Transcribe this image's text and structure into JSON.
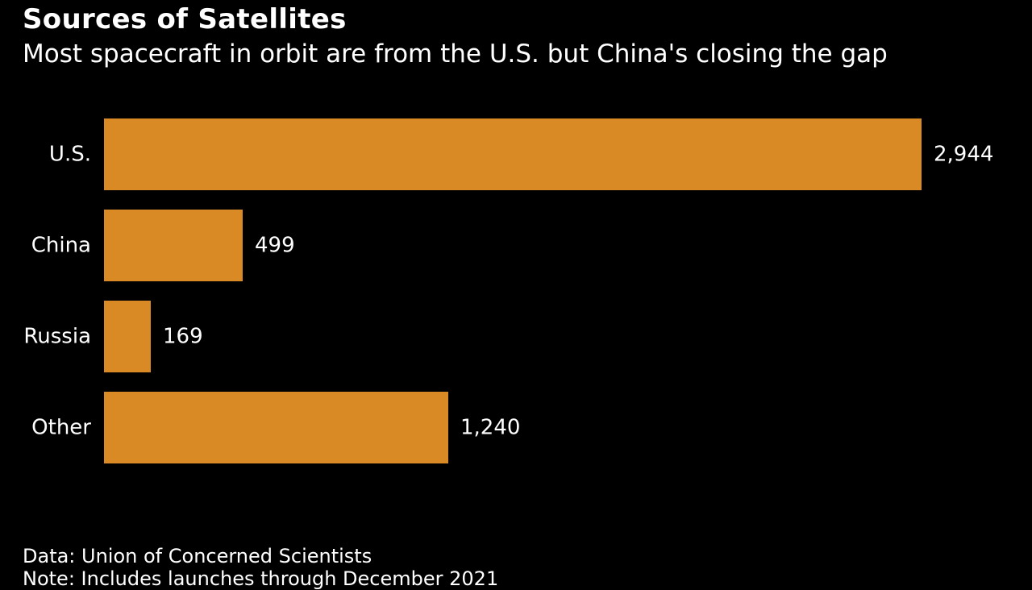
{
  "chart_data": {
    "type": "bar",
    "orientation": "horizontal",
    "title": "Sources of Satellites",
    "subtitle": "Most spacecraft in orbit are from the U.S. but China's closing the gap",
    "categories": [
      "U.S.",
      "China",
      "Russia",
      "Other"
    ],
    "values": [
      2944,
      499,
      169,
      1240
    ],
    "value_labels": [
      "2,944",
      "499",
      "169",
      "1,240"
    ],
    "xlim": [
      0,
      2944
    ],
    "grid": false,
    "legend": "none",
    "bar_color": "#DA8A24",
    "background_color": "#000000"
  },
  "footer": {
    "source": "Data: Union of Concerned Scientists",
    "note": "Note: Includes launches through December 2021"
  }
}
